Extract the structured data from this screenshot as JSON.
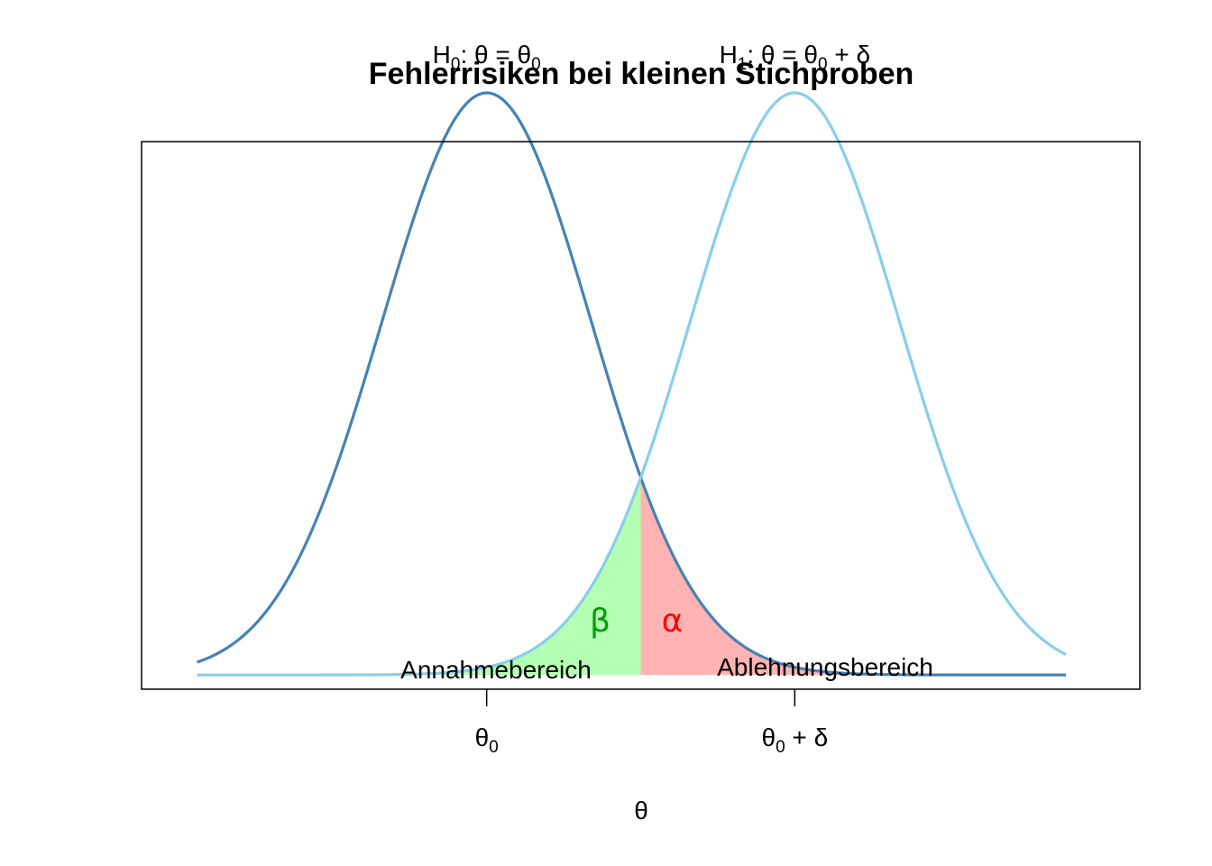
{
  "chart_data": {
    "type": "line",
    "title": "Fehlerrisiken bei kleinen Stichproben",
    "xlabel": "θ",
    "ylabel": "",
    "x_ticks": [
      {
        "x": 0,
        "base": "θ",
        "sub": "0",
        "rest": ""
      },
      {
        "x": 2.5,
        "base": "θ",
        "sub": "0",
        "rest": " + δ"
      }
    ],
    "xlim": [
      -2.8,
      5.3
    ],
    "ylim": [
      -0.0115,
      0.43
    ],
    "x_domain": [
      -2.35,
      4.7
    ],
    "critical_value": 1.25,
    "series": [
      {
        "id": "h0",
        "mean": 0.0,
        "sd": 0.85,
        "color": "#4682B4",
        "label": {
          "pre": "H",
          "sub": "0",
          "mid": ":  θ = θ",
          "sub2": "0",
          "post": ""
        }
      },
      {
        "id": "h1",
        "mean": 2.5,
        "sd": 0.85,
        "color": "#87CEEB",
        "label": {
          "pre": "H",
          "sub": "1",
          "mid": ":  θ = θ",
          "sub2": "0",
          "post": " + δ"
        }
      }
    ],
    "areas": [
      {
        "name": "β",
        "color": "#00A000",
        "fill": "#B3FFB3",
        "under": "h1",
        "side": "left"
      },
      {
        "name": "α",
        "color": "#FF0000",
        "fill": "#FFB3B3",
        "under": "h0",
        "side": "right"
      }
    ],
    "regions": {
      "accept": "Annahmebereich",
      "reject": "Ablehnungsbereich"
    },
    "grid": false,
    "legend": "none"
  }
}
